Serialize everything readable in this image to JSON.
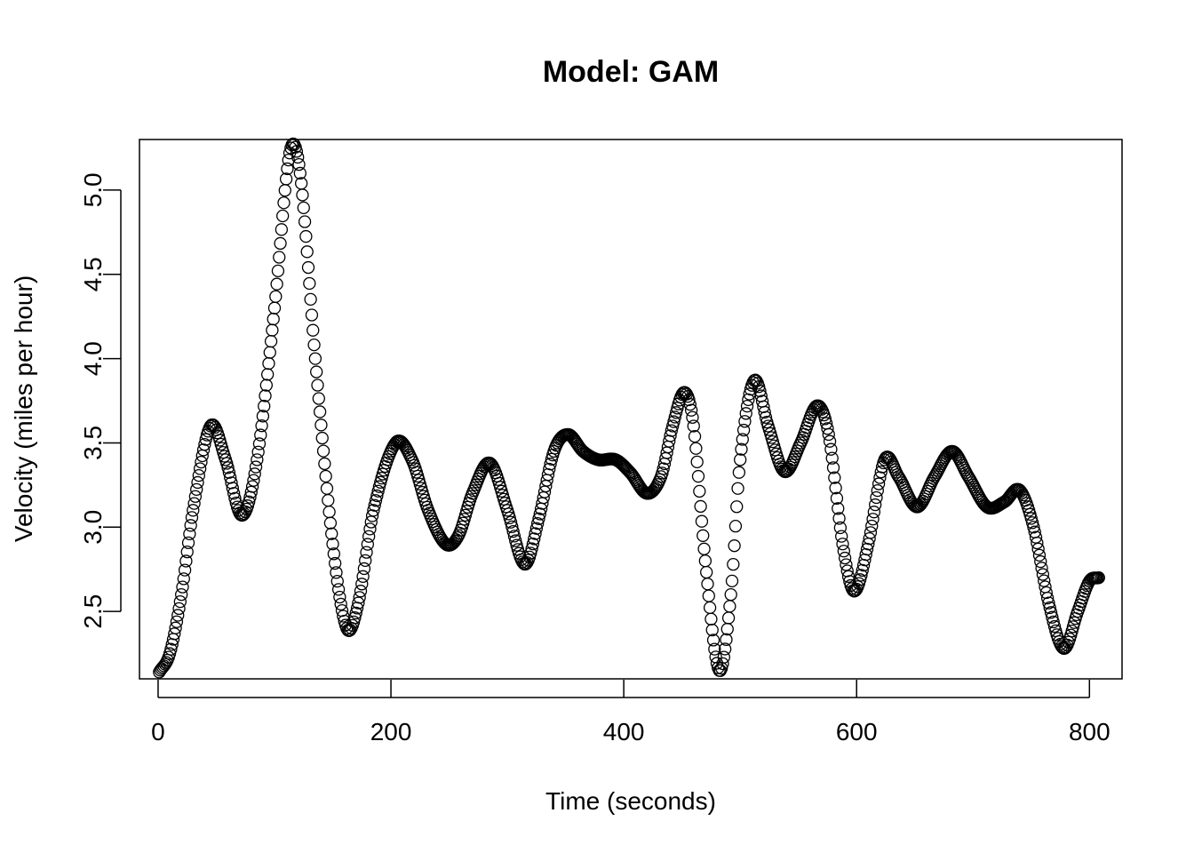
{
  "chart_data": {
    "type": "scatter",
    "title": "Model: GAM",
    "xlabel": "Time (seconds)",
    "ylabel": "Velocity (miles per hour)",
    "xlim": [
      -16,
      828
    ],
    "ylim": [
      2.1,
      5.3
    ],
    "x_ticks": [
      0,
      200,
      400,
      600,
      800
    ],
    "x_tick_labels": [
      "0",
      "200",
      "400",
      "600",
      "800"
    ],
    "y_ticks": [
      2.5,
      3.0,
      3.5,
      4.0,
      4.5,
      5.0
    ],
    "y_tick_labels": [
      "2.5",
      "3.0",
      "3.5",
      "4.0",
      "4.5",
      "5.0"
    ],
    "grid": false,
    "legend": "none",
    "marker": "open-circle",
    "color": "#000000",
    "x_start": 1,
    "x_end": 808,
    "x_step": 1,
    "curve_knots": [
      [
        1,
        2.14
      ],
      [
        10,
        2.25
      ],
      [
        20,
        2.6
      ],
      [
        30,
        3.1
      ],
      [
        45,
        3.6
      ],
      [
        58,
        3.4
      ],
      [
        72,
        3.07
      ],
      [
        85,
        3.4
      ],
      [
        100,
        4.3
      ],
      [
        113,
        5.22
      ],
      [
        122,
        5.1
      ],
      [
        135,
        4.0
      ],
      [
        150,
        2.9
      ],
      [
        162,
        2.4
      ],
      [
        172,
        2.55
      ],
      [
        185,
        3.1
      ],
      [
        204,
        3.5
      ],
      [
        218,
        3.4
      ],
      [
        232,
        3.1
      ],
      [
        247,
        2.9
      ],
      [
        258,
        2.95
      ],
      [
        270,
        3.2
      ],
      [
        285,
        3.38
      ],
      [
        300,
        3.1
      ],
      [
        315,
        2.78
      ],
      [
        327,
        3.05
      ],
      [
        340,
        3.45
      ],
      [
        352,
        3.55
      ],
      [
        365,
        3.45
      ],
      [
        378,
        3.4
      ],
      [
        393,
        3.4
      ],
      [
        406,
        3.32
      ],
      [
        420,
        3.2
      ],
      [
        432,
        3.3
      ],
      [
        442,
        3.6
      ],
      [
        452,
        3.8
      ],
      [
        460,
        3.6
      ],
      [
        470,
        2.8
      ],
      [
        482,
        2.15
      ],
      [
        492,
        2.6
      ],
      [
        500,
        3.4
      ],
      [
        512,
        3.87
      ],
      [
        524,
        3.6
      ],
      [
        538,
        3.33
      ],
      [
        552,
        3.5
      ],
      [
        566,
        3.72
      ],
      [
        576,
        3.55
      ],
      [
        588,
        2.9
      ],
      [
        598,
        2.62
      ],
      [
        610,
        2.9
      ],
      [
        624,
        3.4
      ],
      [
        636,
        3.3
      ],
      [
        652,
        3.12
      ],
      [
        667,
        3.3
      ],
      [
        682,
        3.45
      ],
      [
        696,
        3.3
      ],
      [
        712,
        3.12
      ],
      [
        727,
        3.15
      ],
      [
        740,
        3.22
      ],
      [
        752,
        3.0
      ],
      [
        765,
        2.55
      ],
      [
        778,
        2.28
      ],
      [
        790,
        2.5
      ],
      [
        800,
        2.68
      ],
      [
        808,
        2.7
      ]
    ]
  }
}
